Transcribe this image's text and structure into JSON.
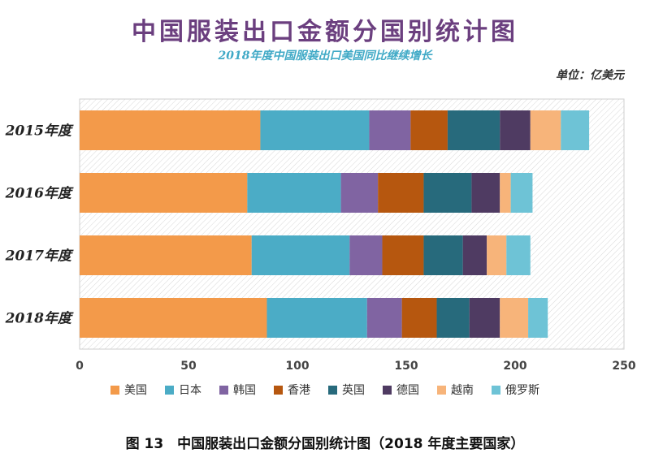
{
  "caption": "图 13　中国服装出口金额分国别统计图（2018 年度主要国家）",
  "chart_data": {
    "type": "bar",
    "orientation": "horizontal",
    "stacked": true,
    "title": "中国服装出口金额分国别统计图",
    "subtitle": "2018年度中国服装出口美国同比继续增长",
    "unit_label": "单位：亿美元",
    "categories": [
      "2015年度",
      "2016年度",
      "2017年度",
      "2018年度"
    ],
    "xlim": [
      0,
      250
    ],
    "xticks": [
      0,
      50,
      100,
      150,
      200,
      250
    ],
    "legend_position": "bottom",
    "series": [
      {
        "name": "美国",
        "color": "#f39a4a",
        "values": [
          83,
          77,
          79,
          86
        ]
      },
      {
        "name": "日本",
        "color": "#4bacc6",
        "values": [
          50,
          43,
          45,
          46
        ]
      },
      {
        "name": "韩国",
        "color": "#8064a2",
        "values": [
          19,
          17,
          15,
          16
        ]
      },
      {
        "name": "香港",
        "color": "#b6570f",
        "values": [
          17,
          21,
          19,
          16
        ]
      },
      {
        "name": "英国",
        "color": "#276a7c",
        "values": [
          24,
          22,
          18,
          15
        ]
      },
      {
        "name": "德国",
        "color": "#4f3b62",
        "values": [
          14,
          13,
          11,
          14
        ]
      },
      {
        "name": "越南",
        "color": "#f7b47a",
        "values": [
          14,
          5,
          9,
          13
        ]
      },
      {
        "name": "俄罗斯",
        "color": "#6ec3d6",
        "values": [
          13,
          10,
          11,
          9
        ]
      }
    ]
  }
}
